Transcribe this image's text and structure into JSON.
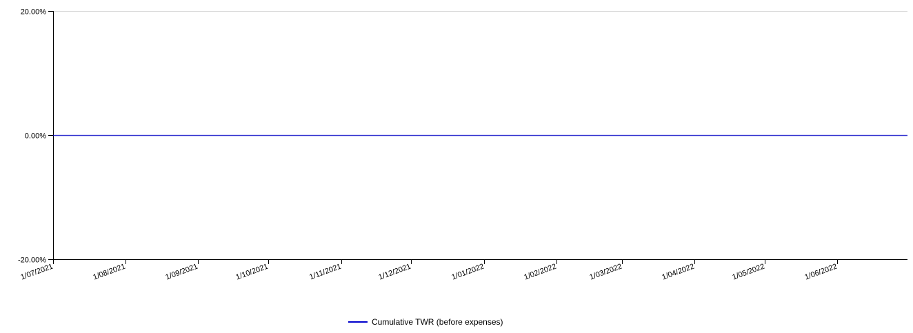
{
  "chart_data": {
    "type": "line",
    "title": "",
    "xlabel": "",
    "ylabel": "",
    "x_ticks": [
      "1/07/2021",
      "1/08/2021",
      "1/09/2021",
      "1/10/2021",
      "1/11/2021",
      "1/12/2021",
      "1/01/2022",
      "1/02/2022",
      "1/03/2022",
      "1/04/2022",
      "1/05/2022",
      "1/06/2022"
    ],
    "y_ticks": [
      "20.00%",
      "0.00%",
      "-20.00%"
    ],
    "ylim": [
      -20,
      20
    ],
    "xlim": [
      "2021-07-01",
      "2022-06-30"
    ],
    "grid": "horizontal",
    "legend_position": "bottom-center",
    "series": [
      {
        "name": "Cumulative TWR (before expenses)",
        "color": "#0000cc",
        "x": [
          "2021-07-01",
          "2022-06-30"
        ],
        "values": [
          0,
          0
        ]
      }
    ]
  }
}
